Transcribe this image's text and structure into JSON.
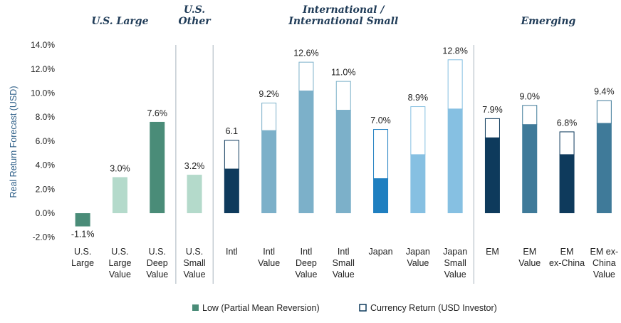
{
  "chart_data": {
    "type": "bar",
    "ylabel": "Real Return Forecast (USD)",
    "ylim": [
      -2,
      14
    ],
    "yticks": [
      "-2.0%",
      "0.0%",
      "2.0%",
      "4.0%",
      "6.0%",
      "8.0%",
      "10.0%",
      "12.0%",
      "14.0%"
    ],
    "groups": [
      {
        "label": "U.S. Large",
        "lines": [
          "U.S. Large"
        ]
      },
      {
        "label": "U.S. Other",
        "lines": [
          "U.S.",
          "Other"
        ]
      },
      {
        "label": "International / International Small",
        "lines": [
          "International /",
          "International Small"
        ]
      },
      {
        "label": "Emerging",
        "lines": [
          "Emerging"
        ]
      }
    ],
    "categories": [
      {
        "lines": [
          "U.S.",
          "Large"
        ],
        "group": 0,
        "low": -1.1,
        "total": -1.1,
        "label": "-1.1%",
        "color": "#4a8c78"
      },
      {
        "lines": [
          "U.S.",
          "Large",
          "Value"
        ],
        "group": 0,
        "low": 3.0,
        "total": 3.0,
        "label": "3.0%",
        "color": "#b4dacb"
      },
      {
        "lines": [
          "U.S.",
          "Deep",
          "Value"
        ],
        "group": 0,
        "low": 7.6,
        "total": 7.6,
        "label": "7.6%",
        "color": "#4a8c78"
      },
      {
        "lines": [
          "U.S.",
          "Small",
          "Value"
        ],
        "group": 1,
        "low": 3.2,
        "total": 3.2,
        "label": "3.2%",
        "color": "#b4dacb"
      },
      {
        "lines": [
          "Intl"
        ],
        "group": 2,
        "low": 3.7,
        "total": 6.1,
        "label": "6.1",
        "color": "#0e3a5c"
      },
      {
        "lines": [
          "Intl",
          "Value"
        ],
        "group": 2,
        "low": 6.9,
        "total": 9.2,
        "label": "9.2%",
        "color": "#7cb0c9"
      },
      {
        "lines": [
          "Intl",
          "Deep",
          "Value"
        ],
        "group": 2,
        "low": 10.2,
        "total": 12.6,
        "label": "12.6%",
        "color": "#7cb0c9"
      },
      {
        "lines": [
          "Intl",
          "Small",
          "Value"
        ],
        "group": 2,
        "low": 8.6,
        "total": 11.0,
        "label": "11.0%",
        "color": "#7cb0c9"
      },
      {
        "lines": [
          "Japan"
        ],
        "group": 2,
        "low": 2.9,
        "total": 7.0,
        "label": "7.0%",
        "color": "#1f7fc0"
      },
      {
        "lines": [
          "Japan",
          "Value"
        ],
        "group": 2,
        "low": 4.9,
        "total": 8.9,
        "label": "8.9%",
        "color": "#86c0e2"
      },
      {
        "lines": [
          "Japan",
          "Small",
          "Value"
        ],
        "group": 2,
        "low": 8.7,
        "total": 12.8,
        "label": "12.8%",
        "color": "#86c0e2"
      },
      {
        "lines": [
          "EM"
        ],
        "group": 3,
        "low": 6.3,
        "total": 7.9,
        "label": "7.9%",
        "color": "#0e3a5c"
      },
      {
        "lines": [
          "EM",
          "Value"
        ],
        "group": 3,
        "low": 7.4,
        "total": 9.0,
        "label": "9.0%",
        "color": "#3f7a99"
      },
      {
        "lines": [
          "EM",
          "ex-China"
        ],
        "group": 3,
        "low": 4.9,
        "total": 6.8,
        "label": "6.8%",
        "color": "#0e3a5c"
      },
      {
        "lines": [
          "EM ex-",
          "China",
          "Value"
        ],
        "group": 3,
        "low": 7.5,
        "total": 9.4,
        "label": "9.4%",
        "color": "#3f7a99"
      }
    ],
    "legend": {
      "placement": "bottom",
      "items": [
        {
          "label": "Low (Partial Mean Reversion)",
          "color": "#4a8c78",
          "style": "filled"
        },
        {
          "label": "Currency Return (USD Investor)",
          "color": "#0e3a5c",
          "style": "outline"
        }
      ]
    },
    "divider_color": "#a9b4bd",
    "grid": false
  }
}
